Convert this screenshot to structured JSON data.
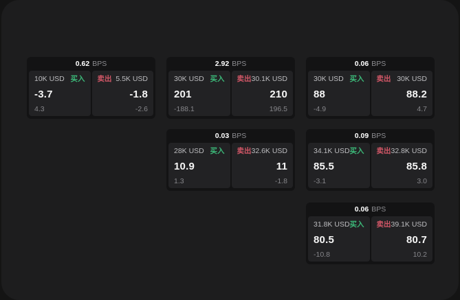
{
  "labels": {
    "bps_unit": "BPS",
    "buy": "买入",
    "sell": "卖出"
  },
  "colors": {
    "page_background": "#1d1d1e",
    "card_background": "#131314",
    "panel_background": "#222224",
    "buy_green": "#3cb878",
    "sell_red": "#d05666",
    "value_white": "#f6f6f6",
    "muted_gray": "#86868a"
  },
  "cards": [
    {
      "bps": "0.62",
      "buy": {
        "amount": "10K USD",
        "value": "-3.7",
        "sub": "4.3"
      },
      "sell": {
        "amount": "5.5K USD",
        "value": "-1.8",
        "sub": "-2.6"
      }
    },
    {
      "bps": "2.92",
      "buy": {
        "amount": "30K USD",
        "value": "201",
        "sub": "-188.1"
      },
      "sell": {
        "amount": "30.1K USD",
        "value": "210",
        "sub": "196.5"
      }
    },
    {
      "bps": "0.06",
      "buy": {
        "amount": "30K USD",
        "value": "88",
        "sub": "-4.9"
      },
      "sell": {
        "amount": "30K USD",
        "value": "88.2",
        "sub": "4.7"
      }
    },
    {
      "bps": "0.03",
      "buy": {
        "amount": "28K USD",
        "value": "10.9",
        "sub": "1.3"
      },
      "sell": {
        "amount": "32.6K USD",
        "value": "11",
        "sub": "-1.8"
      }
    },
    {
      "bps": "0.09",
      "buy": {
        "amount": "34.1K USD",
        "value": "85.5",
        "sub": "-3.1"
      },
      "sell": {
        "amount": "32.8K USD",
        "value": "85.8",
        "sub": "3.0"
      }
    },
    {
      "bps": "0.06",
      "buy": {
        "amount": "31.8K USD",
        "value": "80.5",
        "sub": "-10.8"
      },
      "sell": {
        "amount": "39.1K USD",
        "value": "80.7",
        "sub": "10.2"
      }
    }
  ]
}
